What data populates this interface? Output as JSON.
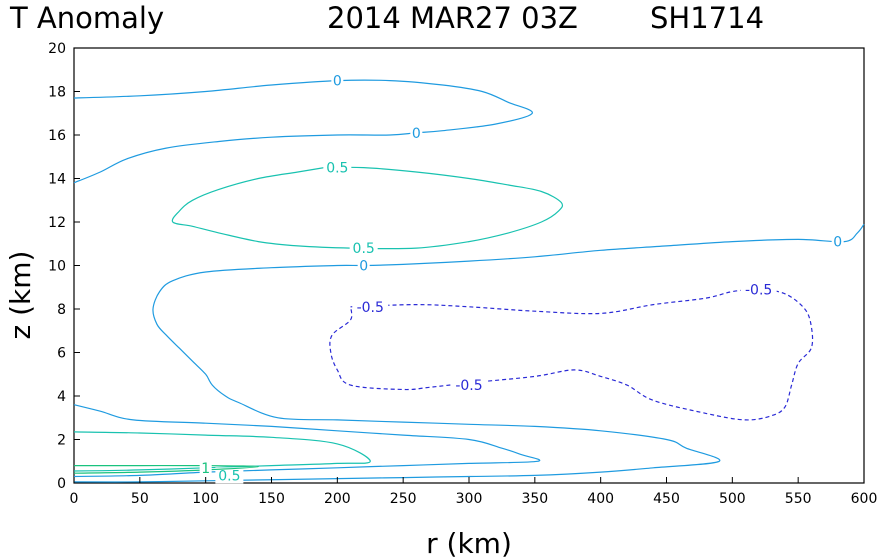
{
  "title": {
    "variable": "T Anomaly",
    "datetime": "2014 MAR27 03Z",
    "storm": "SH1714"
  },
  "colors": {
    "zero": "#1f9be0",
    "half": "#19c2b0",
    "one": "#19c27e",
    "neg_half": "#2a2ad6"
  },
  "chart_data": {
    "type": "contour",
    "title": "T Anomaly 2014 MAR27 03Z SH1714",
    "xlabel": "r (km)",
    "ylabel": "z (km)",
    "xlim": [
      0,
      600
    ],
    "ylim": [
      0,
      20
    ],
    "xticks": [
      0,
      50,
      100,
      150,
      200,
      250,
      300,
      350,
      400,
      450,
      500,
      550,
      600
    ],
    "yticks": [
      0,
      2,
      4,
      6,
      8,
      10,
      12,
      14,
      16,
      18,
      20
    ],
    "grid": false,
    "contours": [
      {
        "level": 0,
        "label": "0",
        "style": "solid",
        "color": "#1f9be0",
        "points": [
          [
            0,
            17.7
          ],
          [
            50,
            17.8
          ],
          [
            100,
            18.0
          ],
          [
            150,
            18.3
          ],
          [
            200,
            18.5
          ],
          [
            240,
            18.5
          ],
          [
            280,
            18.3
          ],
          [
            310,
            18.0
          ],
          [
            330,
            17.5
          ],
          [
            348,
            17.0
          ],
          [
            320,
            16.5
          ],
          [
            280,
            16.2
          ],
          [
            260,
            16.1
          ],
          [
            240,
            16.0
          ],
          [
            200,
            16.0
          ],
          [
            150,
            15.9
          ],
          [
            110,
            15.7
          ],
          [
            70,
            15.4
          ],
          [
            40,
            14.9
          ],
          [
            20,
            14.3
          ],
          [
            0,
            13.8
          ]
        ],
        "labels": [
          [
            200,
            18.5
          ],
          [
            260,
            16.1
          ]
        ]
      },
      {
        "level": 0,
        "label": "0",
        "style": "solid",
        "color": "#1f9be0",
        "points": [
          [
            600,
            11.9
          ],
          [
            595,
            11.5
          ],
          [
            585,
            11.1
          ],
          [
            550,
            11.2
          ],
          [
            500,
            11.1
          ],
          [
            450,
            10.9
          ],
          [
            400,
            10.7
          ],
          [
            350,
            10.4
          ],
          [
            300,
            10.2
          ],
          [
            250,
            10.05
          ],
          [
            220,
            10.0
          ],
          [
            200,
            10.0
          ],
          [
            150,
            9.9
          ],
          [
            100,
            9.7
          ],
          [
            75,
            9.3
          ],
          [
            65,
            8.8
          ],
          [
            60,
            8.0
          ],
          [
            63,
            7.3
          ],
          [
            70,
            6.8
          ],
          [
            80,
            6.2
          ],
          [
            90,
            5.6
          ],
          [
            100,
            5.0
          ],
          [
            105,
            4.5
          ],
          [
            115,
            4.0
          ],
          [
            125,
            3.7
          ],
          [
            155,
            3.0
          ],
          [
            200,
            2.9
          ],
          [
            250,
            2.8
          ],
          [
            300,
            2.7
          ],
          [
            350,
            2.6
          ],
          [
            400,
            2.4
          ],
          [
            450,
            2.0
          ],
          [
            465,
            1.6
          ],
          [
            490,
            1.0
          ],
          [
            440,
            0.7
          ],
          [
            400,
            0.5
          ],
          [
            350,
            0.35
          ],
          [
            300,
            0.3
          ],
          [
            250,
            0.25
          ],
          [
            200,
            0.2
          ],
          [
            100,
            0.1
          ],
          [
            50,
            0.05
          ],
          [
            0,
            0.05
          ]
        ],
        "labels": [
          [
            580,
            11.1
          ],
          [
            220,
            10.0
          ]
        ]
      },
      {
        "level": 0,
        "label": "0",
        "style": "solid",
        "color": "#1f9be0",
        "points": [
          [
            0,
            3.6
          ],
          [
            20,
            3.3
          ],
          [
            45,
            2.9
          ],
          [
            100,
            2.75
          ],
          [
            150,
            2.6
          ],
          [
            200,
            2.4
          ],
          [
            250,
            2.2
          ],
          [
            300,
            2.0
          ],
          [
            325,
            1.6
          ],
          [
            340,
            1.3
          ],
          [
            352,
            1.0
          ],
          [
            300,
            0.9
          ],
          [
            250,
            0.8
          ],
          [
            200,
            0.7
          ],
          [
            150,
            0.6
          ],
          [
            100,
            0.5
          ],
          [
            50,
            0.35
          ],
          [
            0,
            0.3
          ]
        ],
        "labels": []
      },
      {
        "level": 0.5,
        "label": "0.5",
        "style": "solid",
        "color": "#19c2b0",
        "points": [
          [
            190,
            14.5
          ],
          [
            220,
            14.5
          ],
          [
            260,
            14.3
          ],
          [
            300,
            14.0
          ],
          [
            330,
            13.7
          ],
          [
            355,
            13.4
          ],
          [
            370,
            12.9
          ],
          [
            368,
            12.5
          ],
          [
            355,
            12.0
          ],
          [
            330,
            11.5
          ],
          [
            300,
            11.1
          ],
          [
            260,
            10.8
          ],
          [
            210,
            10.8
          ],
          [
            170,
            10.9
          ],
          [
            140,
            11.1
          ],
          [
            110,
            11.5
          ],
          [
            90,
            11.8
          ],
          [
            75,
            12.0
          ],
          [
            80,
            12.5
          ],
          [
            90,
            13.0
          ],
          [
            110,
            13.5
          ],
          [
            140,
            14.0
          ],
          [
            170,
            14.3
          ],
          [
            190,
            14.5
          ]
        ],
        "labels": [
          [
            200,
            14.5
          ],
          [
            220,
            10.8
          ]
        ]
      },
      {
        "level": 0.5,
        "label": "0.5",
        "style": "solid",
        "color": "#19c2b0",
        "points": [
          [
            0,
            2.35
          ],
          [
            50,
            2.3
          ],
          [
            100,
            2.2
          ],
          [
            150,
            2.1
          ],
          [
            200,
            1.8
          ],
          [
            225,
            1.0
          ],
          [
            200,
            0.9
          ],
          [
            150,
            0.8
          ],
          [
            100,
            0.7
          ],
          [
            50,
            0.6
          ],
          [
            0,
            0.55
          ]
        ],
        "labels": [
          [
            118,
            0.35
          ]
        ]
      },
      {
        "level": 1,
        "label": "1",
        "style": "solid",
        "color": "#19c27e",
        "points": [
          [
            0,
            0.8
          ],
          [
            50,
            0.8
          ],
          [
            100,
            0.8
          ],
          [
            140,
            0.75
          ],
          [
            100,
            0.6
          ],
          [
            50,
            0.5
          ],
          [
            0,
            0.45
          ]
        ],
        "labels": [
          [
            100,
            0.7
          ]
        ]
      },
      {
        "level": -0.5,
        "label": "-0.5",
        "style": "dashed",
        "color": "#2a2ad6",
        "points": [
          [
            210,
            8.1
          ],
          [
            260,
            8.2
          ],
          [
            300,
            8.1
          ],
          [
            350,
            7.9
          ],
          [
            400,
            7.8
          ],
          [
            440,
            8.2
          ],
          [
            480,
            8.5
          ],
          [
            500,
            8.8
          ],
          [
            520,
            8.9
          ],
          [
            540,
            8.7
          ],
          [
            555,
            8.0
          ],
          [
            560,
            7.2
          ],
          [
            560,
            6.2
          ],
          [
            550,
            5.5
          ],
          [
            545,
            4.5
          ],
          [
            540,
            3.5
          ],
          [
            530,
            3.1
          ],
          [
            510,
            2.9
          ],
          [
            480,
            3.2
          ],
          [
            440,
            3.8
          ],
          [
            420,
            4.5
          ],
          [
            400,
            4.9
          ],
          [
            380,
            5.2
          ],
          [
            350,
            4.9
          ],
          [
            300,
            4.6
          ],
          [
            270,
            4.4
          ],
          [
            250,
            4.3
          ],
          [
            210,
            4.5
          ],
          [
            200,
            5.2
          ],
          [
            195,
            6.0
          ],
          [
            196,
            6.8
          ],
          [
            210,
            7.5
          ],
          [
            210,
            8.1
          ]
        ],
        "labels": [
          [
            225,
            8.1
          ],
          [
            520,
            8.9
          ],
          [
            300,
            4.5
          ]
        ]
      }
    ]
  }
}
